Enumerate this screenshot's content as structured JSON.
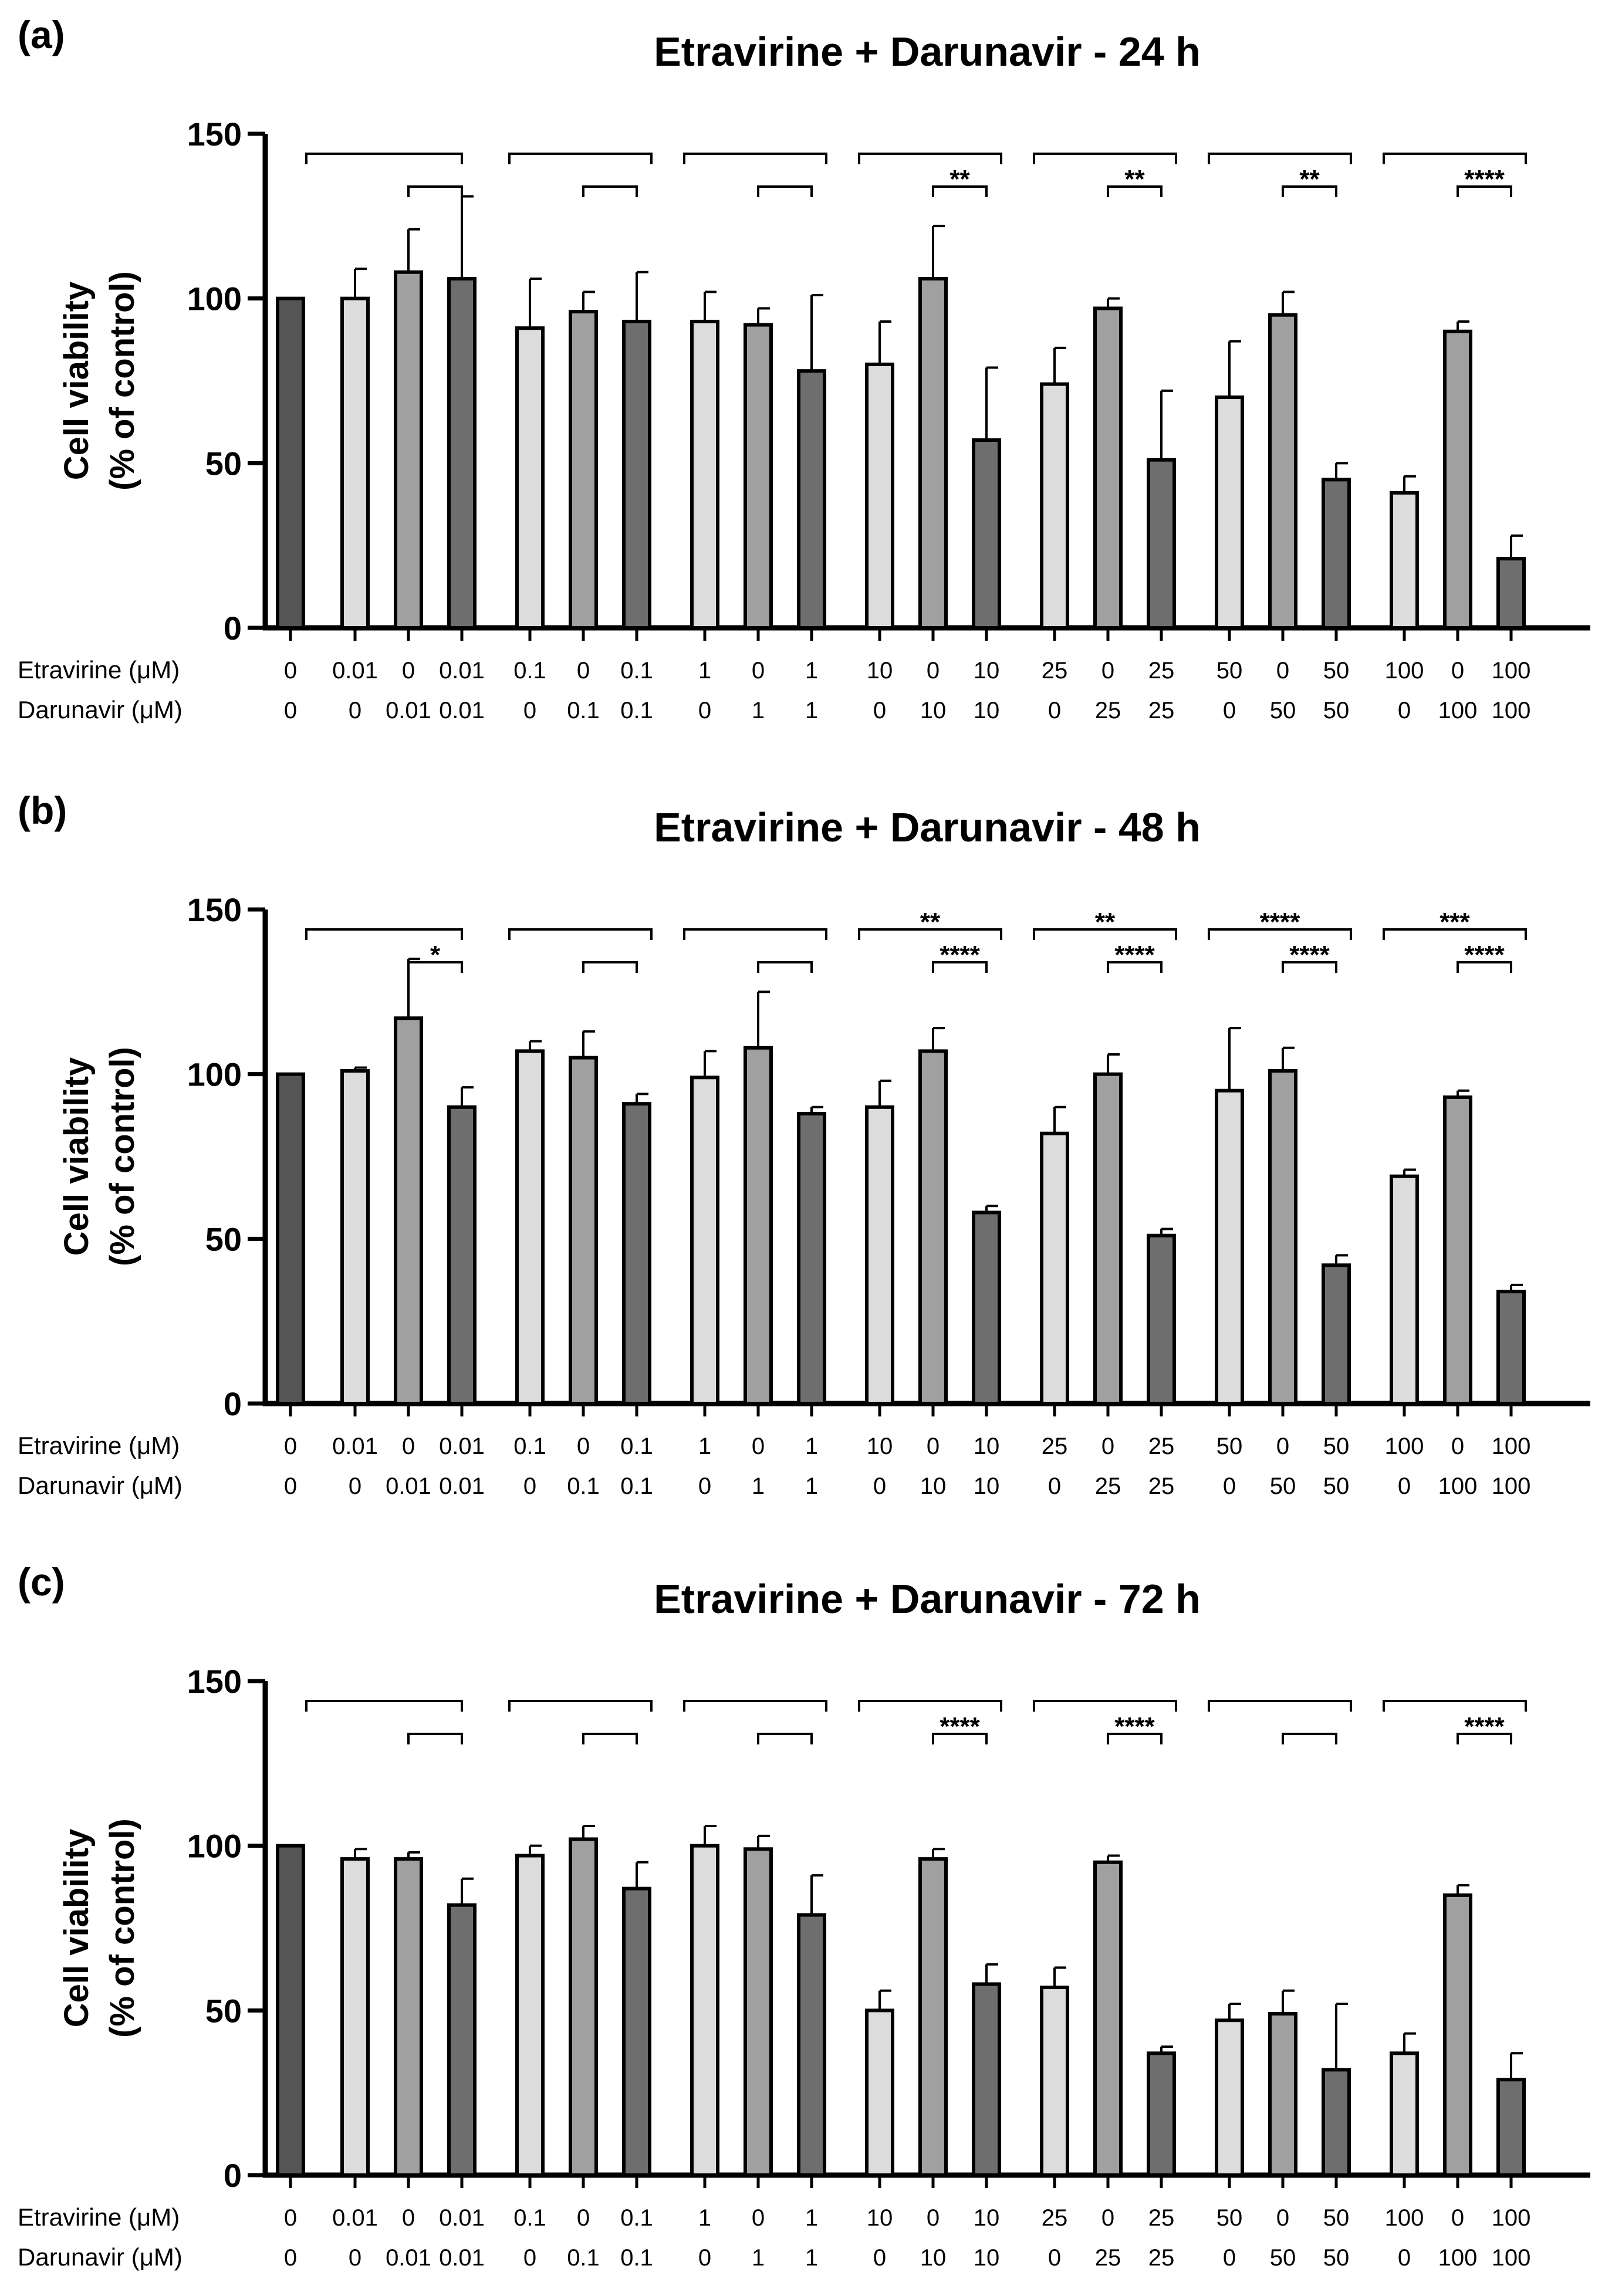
{
  "figure": {
    "row_labels": [
      "Etravirine (μM)",
      "Darunavir (μM)"
    ],
    "etravirine_doses": [
      "0",
      "0.01",
      "0",
      "0.01",
      "0.1",
      "0",
      "0.1",
      "1",
      "0",
      "1",
      "10",
      "0",
      "10",
      "25",
      "0",
      "25",
      "50",
      "0",
      "50",
      "100",
      "0",
      "100"
    ],
    "darunavir_doses": [
      "0",
      "0",
      "0.01",
      "0.01",
      "0",
      "0.1",
      "0.1",
      "0",
      "1",
      "1",
      "0",
      "10",
      "10",
      "0",
      "25",
      "25",
      "0",
      "50",
      "50",
      "0",
      "100",
      "100"
    ],
    "bar_kinds": [
      "control",
      "etr",
      "dar",
      "combo",
      "etr",
      "dar",
      "combo",
      "etr",
      "dar",
      "combo",
      "etr",
      "dar",
      "combo",
      "etr",
      "dar",
      "combo",
      "etr",
      "dar",
      "combo",
      "etr",
      "dar",
      "combo"
    ],
    "colors": {
      "control": "#555555",
      "etr": "#dcdcdc",
      "dar": "#a0a0a0",
      "combo": "#6e6e6e",
      "axis": "#000000"
    }
  },
  "chart_data": [
    {
      "panel": "(a)",
      "type": "bar",
      "title": "Etravirine + Darunavir - 24 h",
      "ylabel_line1": "Cell viability",
      "ylabel_line2": "(% of control)",
      "ylim": [
        0,
        150
      ],
      "yticks": [
        "0",
        "50",
        "100",
        "150"
      ],
      "values": [
        100,
        100,
        108,
        106,
        91,
        96,
        93,
        93,
        92,
        78,
        80,
        106,
        57,
        74,
        97,
        51,
        70,
        95,
        45,
        41,
        90,
        21
      ],
      "errors": [
        0,
        9,
        13,
        25,
        15,
        6,
        15,
        9,
        5,
        23,
        13,
        16,
        22,
        11,
        3,
        21,
        17,
        7,
        5,
        5,
        3,
        7
      ],
      "brackets": [
        {
          "groups": "control vs Etravirine 0.01 + Darunavir 0.01",
          "label": ""
        },
        {
          "groups": "Darunavir 0.01 vs Etravirine 0.01 + Darunavir 0.01",
          "label": ""
        },
        {
          "groups": "Etravirine 0.1 vs Etravirine 0.1 + Darunavir 0.1",
          "label": ""
        },
        {
          "groups": "Darunavir 0.1 vs Etravirine 0.1 + Darunavir 0.1",
          "label": ""
        },
        {
          "groups": "Etravirine 1 vs Etravirine 1 + Darunavir 1",
          "label": ""
        },
        {
          "groups": "Darunavir 1 vs Etravirine 1 + Darunavir 1",
          "label": ""
        },
        {
          "groups": "Etravirine 10 vs Etravirine 10 + Darunavir 10",
          "label": ""
        },
        {
          "groups": "Darunavir 10 vs Etravirine 10 + Darunavir 10",
          "label": "**"
        },
        {
          "groups": "Etravirine 25 vs Etravirine 25 + Darunavir 25",
          "label": ""
        },
        {
          "groups": "Darunavir 25 vs Etravirine 25 + Darunavir 25",
          "label": "**"
        },
        {
          "groups": "Etravirine 50 vs Etravirine 50 + Darunavir 50",
          "label": ""
        },
        {
          "groups": "Darunavir 50 vs Etravirine 50 + Darunavir 50",
          "label": "**"
        },
        {
          "groups": "Etravirine 100 vs Etravirine 100 + Darunavir 100",
          "label": ""
        },
        {
          "groups": "Darunavir 100 vs Etravirine 100 + Darunavir 100",
          "label": "****"
        }
      ]
    },
    {
      "panel": "(b)",
      "type": "bar",
      "title": "Etravirine + Darunavir - 48 h",
      "ylabel_line1": "Cell viability",
      "ylabel_line2": "(% of control)",
      "ylim": [
        0,
        150
      ],
      "yticks": [
        "0",
        "50",
        "100",
        "150"
      ],
      "values": [
        100,
        101,
        117,
        90,
        107,
        105,
        91,
        99,
        108,
        88,
        90,
        107,
        58,
        82,
        100,
        51,
        95,
        101,
        42,
        69,
        93,
        34
      ],
      "errors": [
        0,
        1,
        18,
        6,
        3,
        8,
        3,
        8,
        17,
        2,
        8,
        7,
        2,
        8,
        6,
        2,
        19,
        7,
        3,
        2,
        2,
        2
      ],
      "brackets": [
        {
          "groups": "control vs Etravirine 0.01 + Darunavir 0.01",
          "label": ""
        },
        {
          "groups": "Darunavir 0.01 vs Etravirine 0.01 + Darunavir 0.01",
          "label": "*"
        },
        {
          "groups": "Etravirine 0.1 vs Etravirine 0.1 + Darunavir 0.1",
          "label": ""
        },
        {
          "groups": "Darunavir 0.1 vs Etravirine 0.1 + Darunavir 0.1",
          "label": ""
        },
        {
          "groups": "Etravirine 1 vs Etravirine 1 + Darunavir 1",
          "label": ""
        },
        {
          "groups": "Darunavir 1 vs Etravirine 1 + Darunavir 1",
          "label": ""
        },
        {
          "groups": "Etravirine 10 vs Etravirine 10 + Darunavir 10",
          "label": "**"
        },
        {
          "groups": "Darunavir 10 vs Etravirine 10 + Darunavir 10",
          "label": "****"
        },
        {
          "groups": "Etravirine 25 vs Etravirine 25 + Darunavir 25",
          "label": "**"
        },
        {
          "groups": "Darunavir 25 vs Etravirine 25 + Darunavir 25",
          "label": "****"
        },
        {
          "groups": "Etravirine 50 vs Etravirine 50 + Darunavir 50",
          "label": "****"
        },
        {
          "groups": "Darunavir 50 vs Etravirine 50 + Darunavir 50",
          "label": "****"
        },
        {
          "groups": "Etravirine 100 vs Etravirine 100 + Darunavir 100",
          "label": "***"
        },
        {
          "groups": "Darunavir 100 vs Etravirine 100 + Darunavir 100",
          "label": "****"
        }
      ]
    },
    {
      "panel": "(c)",
      "type": "bar",
      "title": "Etravirine + Darunavir - 72 h",
      "ylabel_line1": "Cell viability",
      "ylabel_line2": "(% of control)",
      "ylim": [
        0,
        150
      ],
      "yticks": [
        "0",
        "50",
        "100",
        "150"
      ],
      "values": [
        100,
        96,
        96,
        82,
        97,
        102,
        87,
        100,
        99,
        79,
        50,
        96,
        58,
        57,
        95,
        37,
        47,
        49,
        32,
        37,
        85,
        29
      ],
      "errors": [
        0,
        3,
        2,
        8,
        3,
        4,
        8,
        6,
        4,
        12,
        6,
        3,
        6,
        6,
        2,
        2,
        5,
        7,
        20,
        6,
        3,
        8
      ],
      "brackets": [
        {
          "groups": "control vs Etravirine 0.01 + Darunavir 0.01",
          "label": ""
        },
        {
          "groups": "Darunavir 0.01 vs Etravirine 0.01 + Darunavir 0.01",
          "label": ""
        },
        {
          "groups": "Etravirine 0.1 vs Etravirine 0.1 + Darunavir 0.1",
          "label": ""
        },
        {
          "groups": "Darunavir 0.1 vs Etravirine 0.1 + Darunavir 0.1",
          "label": ""
        },
        {
          "groups": "Etravirine 1 vs Etravirine 1 + Darunavir 1",
          "label": ""
        },
        {
          "groups": "Darunavir 1 vs Etravirine 1 + Darunavir 1",
          "label": ""
        },
        {
          "groups": "Etravirine 10 vs Etravirine 10 + Darunavir 10",
          "label": ""
        },
        {
          "groups": "Darunavir 10 vs Etravirine 10 + Darunavir 10",
          "label": "****"
        },
        {
          "groups": "Etravirine 25 vs Etravirine 25 + Darunavir 25",
          "label": ""
        },
        {
          "groups": "Darunavir 25 vs Etravirine 25 + Darunavir 25",
          "label": "****"
        },
        {
          "groups": "Etravirine 50 vs Etravirine 50 + Darunavir 50",
          "label": ""
        },
        {
          "groups": "Darunavir 50 vs Etravirine 50 + Darunavir 50",
          "label": ""
        },
        {
          "groups": "Etravirine 100 vs Etravirine 100 + Darunavir 100",
          "label": ""
        },
        {
          "groups": "Darunavir 100 vs Etravirine 100 + Darunavir 100",
          "label": "****"
        }
      ]
    }
  ]
}
